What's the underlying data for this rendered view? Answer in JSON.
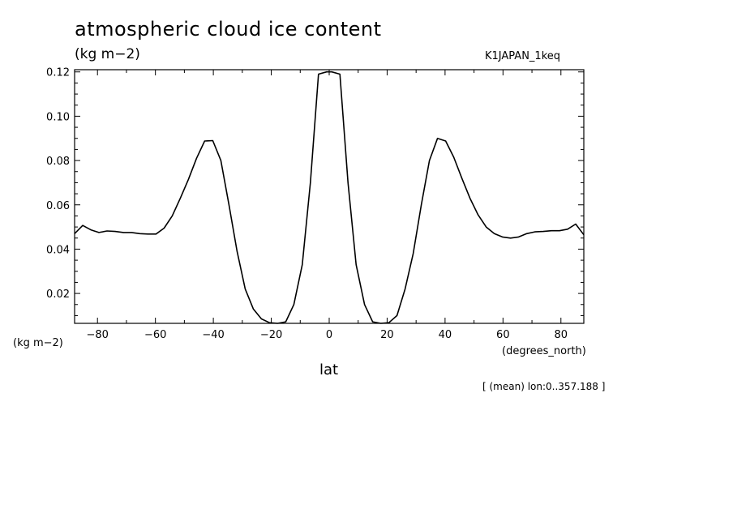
{
  "title": "atmospheric cloud ice content",
  "subtitle": "(kg m−2)",
  "run_label": "K1JAPAN_1keq",
  "xlabel": "lat",
  "xunits": "(degrees_north)",
  "ylabel": "(kg m−2)",
  "mean_note": "[ (mean) lon:0..357.188 ]",
  "chart_data": {
    "type": "line",
    "title": "atmospheric cloud ice content",
    "xlabel": "lat",
    "ylabel": "(kg m−2)",
    "xlim": [
      -87.9,
      87.9
    ],
    "ylim": [
      0.0065,
      0.121
    ],
    "xticks": [
      -80,
      -60,
      -40,
      -20,
      0,
      20,
      40,
      60,
      80
    ],
    "xtick_labels": [
      "−80",
      "−60",
      "−40",
      "−20",
      "0",
      "20",
      "40",
      "60",
      "80"
    ],
    "yticks": [
      0.02,
      0.04,
      0.06,
      0.08,
      0.1,
      0.12
    ],
    "ytick_labels": [
      "0.02",
      "0.04",
      "0.06",
      "0.08",
      "0.10",
      "0.12"
    ],
    "grid": false,
    "line_color": "#000000",
    "series": [
      {
        "x": [
          -87.9,
          -85.1,
          -82.3,
          -79.5,
          -76.7,
          -73.9,
          -71.0,
          -68.2,
          -65.4,
          -62.6,
          -59.8,
          -57.0,
          -54.2,
          -51.4,
          -48.6,
          -45.8,
          -43.0,
          -40.2,
          -37.4,
          -34.6,
          -31.8,
          -29.0,
          -26.2,
          -23.4,
          -20.6,
          -17.8,
          -15.0,
          -12.2,
          -9.3,
          -6.5,
          -3.7,
          -0.9,
          0.9,
          3.7,
          6.5,
          9.3,
          12.2,
          15.0,
          17.8,
          20.6,
          23.4,
          26.2,
          29.0,
          31.8,
          34.6,
          37.4,
          40.2,
          43.0,
          45.8,
          48.6,
          51.4,
          54.2,
          57.0,
          59.8,
          62.6,
          65.4,
          68.2,
          71.0,
          73.9,
          76.7,
          79.5,
          82.3,
          85.1,
          87.9
        ],
        "values": [
          0.047,
          0.0507,
          0.0487,
          0.0475,
          0.0482,
          0.048,
          0.0475,
          0.0475,
          0.047,
          0.0468,
          0.0468,
          0.0495,
          0.055,
          0.063,
          0.0715,
          0.081,
          0.0888,
          0.089,
          0.08,
          0.06,
          0.039,
          0.022,
          0.013,
          0.0085,
          0.0068,
          0.0065,
          0.0072,
          0.015,
          0.033,
          0.07,
          0.119,
          0.12,
          0.12,
          0.119,
          0.07,
          0.033,
          0.015,
          0.0072,
          0.0065,
          0.0068,
          0.01,
          0.022,
          0.038,
          0.06,
          0.08,
          0.09,
          0.0888,
          0.0815,
          0.072,
          0.063,
          0.0555,
          0.05,
          0.047,
          0.0455,
          0.045,
          0.0455,
          0.047,
          0.0478,
          0.048,
          0.0483,
          0.0483,
          0.049,
          0.0513,
          0.0465
        ]
      }
    ]
  }
}
